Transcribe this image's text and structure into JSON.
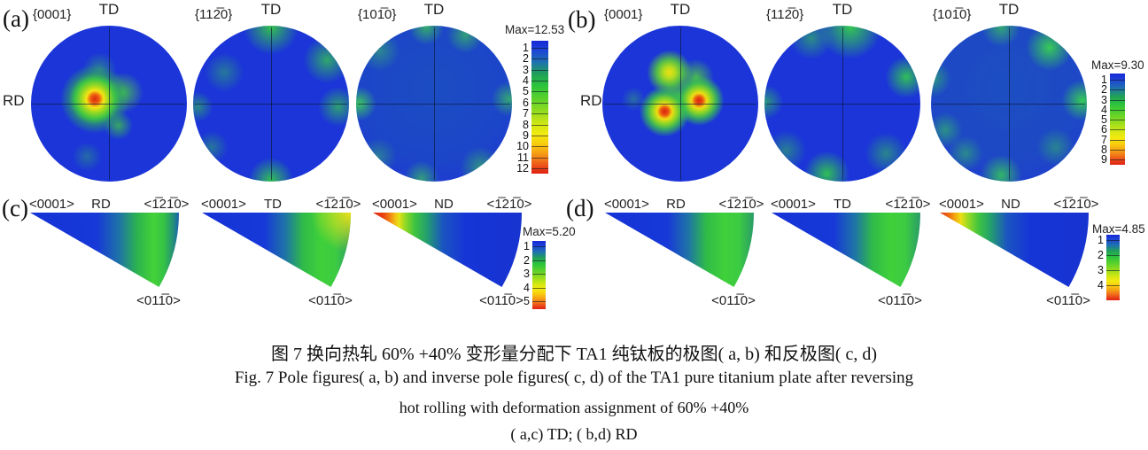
{
  "background": "#ffffff",
  "colors": {
    "pole_base_blue": "#1b35d8",
    "scale_low": "#1629d6",
    "scale_mid_green": "#2cc43c",
    "scale_yellow": "#f2ea10",
    "scale_high_red": "#e02010"
  },
  "panels": {
    "a": {
      "label": "(a)",
      "row_label": "RD",
      "figures": [
        {
          "plane": "{0001}",
          "top_axis": "TD"
        },
        {
          "plane": "{112̅0}",
          "top_axis": "TD"
        },
        {
          "plane": "{101̅0}",
          "top_axis": "TD"
        }
      ],
      "scale": {
        "max": "Max=12.53",
        "ticks": [
          "1",
          "2",
          "3",
          "4",
          "5",
          "6",
          "7",
          "8",
          "9",
          "10",
          "11",
          "12"
        ]
      }
    },
    "b": {
      "label": "(b)",
      "row_label": "RD",
      "figures": [
        {
          "plane": "{0001}",
          "top_axis": "TD"
        },
        {
          "plane": "{112̅0}",
          "top_axis": "TD"
        },
        {
          "plane": "{101̅0}",
          "top_axis": "TD"
        }
      ],
      "scale": {
        "max": "Max=9.30",
        "ticks": [
          "1",
          "2",
          "3",
          "4",
          "5",
          "6",
          "7",
          "8",
          "9"
        ]
      }
    },
    "c": {
      "label": "(c)",
      "figures": [
        {
          "apex": "<0001>",
          "direction": "RD",
          "top_right": "<1̅21̅0>",
          "bottom": "<011̅0>"
        },
        {
          "apex": "<0001>",
          "direction": "TD",
          "top_right": "<1̅21̅0>",
          "bottom": "<011̅0>"
        },
        {
          "apex": "<0001>",
          "direction": "ND",
          "top_right": "<1̅21̅0>",
          "bottom": "<011̅0>"
        }
      ],
      "scale": {
        "max": "Max=5.20",
        "ticks": [
          "1",
          "2",
          "3",
          "4",
          "5"
        ]
      }
    },
    "d": {
      "label": "(d)",
      "figures": [
        {
          "apex": "<0001>",
          "direction": "RD",
          "top_right": "<1̅21̅0>",
          "bottom": "<011̅0>"
        },
        {
          "apex": "<0001>",
          "direction": "TD",
          "top_right": "<1̅21̅0>",
          "bottom": "<011̅0>"
        },
        {
          "apex": "<0001>",
          "direction": "ND",
          "top_right": "<1̅21̅0>",
          "bottom": "<011̅0>"
        }
      ],
      "scale": {
        "max": "Max=4.85",
        "ticks": [
          "1",
          "2",
          "3",
          "4"
        ]
      }
    }
  },
  "caption": {
    "zh": "图 7  换向热轧 60% +40% 变形量分配下 TA1 纯钛板的极图( a, b) 和反极图( c, d)",
    "en1": "Fig. 7   Pole figures( a, b)  and inverse pole figures( c, d)  of the TA1 pure titanium plate after reversing",
    "en2": "hot rolling with deformation assignment of 60% +40%",
    "en3": "( a,c) TD;  ( b,d) RD"
  },
  "chart_data": [
    {
      "type": "heatmap",
      "subtype": "pole_figure",
      "panel": "a",
      "planes": [
        "{0001}",
        "{112̅0}",
        "{101̅0}"
      ],
      "axes": {
        "top": "TD",
        "left": "RD"
      },
      "max_intensity": 12.53,
      "scale_ticks": [
        1,
        2,
        3,
        4,
        5,
        6,
        7,
        8,
        9,
        10,
        11,
        12
      ]
    },
    {
      "type": "heatmap",
      "subtype": "pole_figure",
      "panel": "b",
      "planes": [
        "{0001}",
        "{112̅0}",
        "{101̅0}"
      ],
      "axes": {
        "top": "TD",
        "left": "RD"
      },
      "max_intensity": 9.3,
      "scale_ticks": [
        1,
        2,
        3,
        4,
        5,
        6,
        7,
        8,
        9
      ]
    },
    {
      "type": "heatmap",
      "subtype": "inverse_pole_figure",
      "panel": "c",
      "directions": [
        "RD",
        "TD",
        "ND"
      ],
      "corners": [
        "<0001>",
        "<1̅21̅0>",
        "<011̅0>"
      ],
      "max_intensity": 5.2,
      "scale_ticks": [
        1,
        2,
        3,
        4,
        5
      ]
    },
    {
      "type": "heatmap",
      "subtype": "inverse_pole_figure",
      "panel": "d",
      "directions": [
        "RD",
        "TD",
        "ND"
      ],
      "corners": [
        "<0001>",
        "<1̅21̅0>",
        "<011̅0>"
      ],
      "max_intensity": 4.85,
      "scale_ticks": [
        1,
        2,
        3,
        4
      ]
    }
  ]
}
